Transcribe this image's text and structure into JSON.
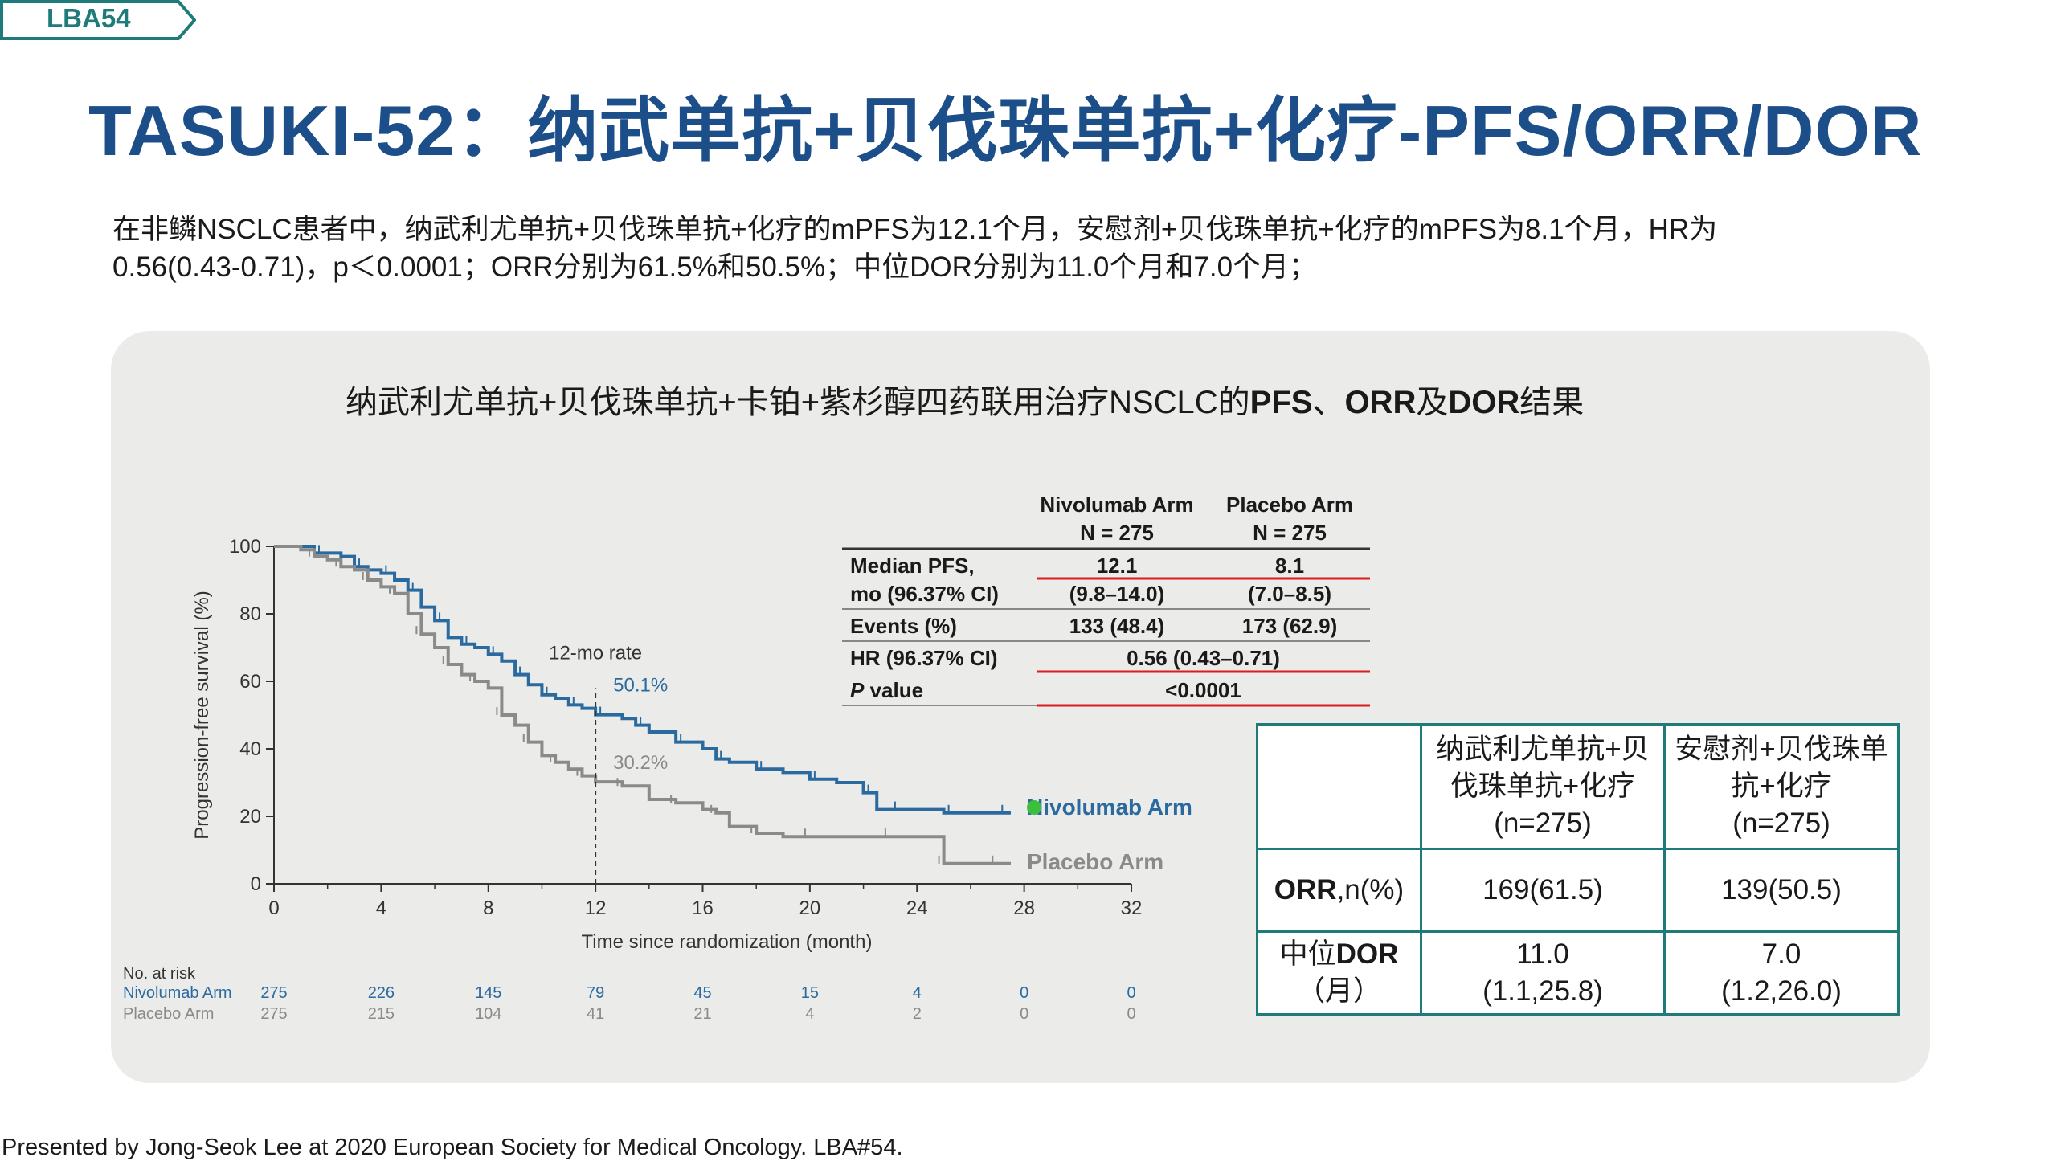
{
  "tag": {
    "label": "LBA54"
  },
  "title": "TASUKI-52：纳武单抗+贝伐珠单抗+化疗-PFS/ORR/DOR",
  "summary": {
    "line1": "在非鳞NSCLC患者中，纳武利尤单抗+贝伐珠单抗+化疗的mPFS为12.1个月，安慰剂+贝伐珠单抗+化疗的mPFS为8.1个月，HR为",
    "line2": "0.56(0.43-0.71)，p＜0.0001；ORR分别为61.5%和50.5%；中位DOR分别为11.0个月和7.0个月；"
  },
  "panel": {
    "title_a": "纳武利尤单抗+贝伐珠单抗+卡铂+紫杉醇四药联用治疗NSCLC的",
    "title_b": "PFS",
    "title_c": "、",
    "title_d": "ORR",
    "title_e": "及",
    "title_f": "DOR",
    "title_g": "结果"
  },
  "chart_data": {
    "type": "line",
    "xlabel": "Time since randomization (month)",
    "ylabel": "Progression-free survival (%)",
    "xlim": [
      0,
      32
    ],
    "ylim": [
      0,
      100
    ],
    "xticks": [
      0,
      4,
      8,
      12,
      16,
      20,
      24,
      28,
      32
    ],
    "yticks": [
      0,
      20,
      40,
      60,
      80,
      100
    ],
    "annotation": "12-mo rate",
    "series": [
      {
        "name": "Nivolumab Arm",
        "color": "#2a6a9e",
        "rate_label": "50.1%",
        "points": [
          [
            0,
            100
          ],
          [
            1,
            100
          ],
          [
            1.5,
            98
          ],
          [
            2.5,
            97
          ],
          [
            3,
            94
          ],
          [
            3.5,
            93
          ],
          [
            4,
            92
          ],
          [
            4.5,
            90
          ],
          [
            5,
            87
          ],
          [
            5.5,
            82
          ],
          [
            6,
            78
          ],
          [
            6.5,
            73
          ],
          [
            7,
            71
          ],
          [
            7.5,
            70
          ],
          [
            8,
            68
          ],
          [
            8.5,
            66
          ],
          [
            9,
            62
          ],
          [
            9.5,
            59
          ],
          [
            10,
            56
          ],
          [
            10.5,
            55
          ],
          [
            11,
            53
          ],
          [
            11.5,
            52
          ],
          [
            12,
            50.1
          ],
          [
            13,
            49
          ],
          [
            13.5,
            47
          ],
          [
            14,
            45
          ],
          [
            15,
            42
          ],
          [
            16,
            40
          ],
          [
            16.5,
            37
          ],
          [
            17,
            36
          ],
          [
            18,
            34
          ],
          [
            19,
            33
          ],
          [
            20,
            31
          ],
          [
            21,
            30
          ],
          [
            22,
            27
          ],
          [
            22.5,
            22
          ],
          [
            23,
            22
          ],
          [
            24,
            22
          ],
          [
            25,
            21
          ],
          [
            26,
            21
          ],
          [
            27,
            21
          ],
          [
            27.5,
            21
          ]
        ]
      },
      {
        "name": "Placebo Arm",
        "color": "#8a8a8a",
        "rate_label": "30.2%",
        "points": [
          [
            0,
            100
          ],
          [
            1,
            99
          ],
          [
            1.5,
            97
          ],
          [
            2,
            96
          ],
          [
            2.5,
            94
          ],
          [
            3,
            93
          ],
          [
            3.5,
            90
          ],
          [
            4,
            88
          ],
          [
            4.5,
            86
          ],
          [
            5,
            80
          ],
          [
            5.5,
            74
          ],
          [
            6,
            70
          ],
          [
            6.5,
            65
          ],
          [
            7,
            62
          ],
          [
            7.5,
            60
          ],
          [
            8,
            58
          ],
          [
            8.5,
            50
          ],
          [
            9,
            47
          ],
          [
            9.5,
            42
          ],
          [
            10,
            38
          ],
          [
            10.5,
            36
          ],
          [
            11,
            34
          ],
          [
            11.5,
            32
          ],
          [
            12,
            30.2
          ],
          [
            13,
            29
          ],
          [
            14,
            25
          ],
          [
            15,
            24
          ],
          [
            16,
            22
          ],
          [
            16.5,
            21
          ],
          [
            17,
            17
          ],
          [
            18,
            15
          ],
          [
            19,
            14
          ],
          [
            20,
            14
          ],
          [
            22,
            14
          ],
          [
            23,
            14
          ],
          [
            24,
            14
          ],
          [
            25,
            6
          ],
          [
            26,
            6
          ],
          [
            27,
            6
          ],
          [
            27.5,
            6
          ]
        ]
      }
    ],
    "at_risk": {
      "label": "No. at risk",
      "times": [
        0,
        4,
        8,
        12,
        16,
        20,
        24,
        28,
        32
      ],
      "rows": [
        {
          "name": "Nivolumab Arm",
          "values": [
            275,
            226,
            145,
            79,
            45,
            15,
            4,
            0,
            0
          ]
        },
        {
          "name": "Placebo Arm",
          "values": [
            275,
            215,
            104,
            41,
            21,
            4,
            2,
            0,
            0
          ]
        }
      ]
    },
    "stats_table": {
      "col1": [
        "Nivolumab Arm",
        "N = 275"
      ],
      "col2": [
        "Placebo Arm",
        "N = 275"
      ],
      "rows": [
        {
          "label": [
            "Median PFS,",
            "mo (96.37% CI)"
          ],
          "v1": [
            "12.1",
            "(9.8–14.0)"
          ],
          "v2": [
            "8.1",
            "(7.0–8.5)"
          ]
        },
        {
          "label": [
            "Events (%)"
          ],
          "v1": [
            "133 (48.4)"
          ],
          "v2": [
            "173 (62.9)"
          ]
        },
        {
          "label": [
            "HR (96.37% CI)"
          ],
          "span": "0.56 (0.43–0.71)"
        },
        {
          "label_italic": "P",
          "label": [
            " value"
          ],
          "span": "<0.0001"
        }
      ]
    }
  },
  "result_table": {
    "header": [
      "",
      "纳武利尤单抗+贝伐珠单抗+化疗(n=275)",
      "安慰剂+贝伐珠单抗+化疗(n=275)"
    ],
    "h1_lines": [
      "纳武利尤单抗+贝",
      "伐珠单抗+化疗",
      "(n=275)"
    ],
    "h2_lines": [
      "安慰剂+贝伐珠单",
      "抗+化疗",
      "(n=275)"
    ],
    "orr_label_b": "ORR",
    "orr_label_r": ",n(%)",
    "orr": [
      "169(61.5)",
      "139(50.5)"
    ],
    "dor_label_a": "中位",
    "dor_label_b": "DOR",
    "dor_label_c": "（月）",
    "dor1": [
      "11.0",
      "(1.1,25.8)"
    ],
    "dor2": [
      "7.0",
      "(1.2,26.0)"
    ]
  },
  "footer": "Presented by Jong-Seok Lee at 2020 European Society for Medical Oncology. LBA#54."
}
